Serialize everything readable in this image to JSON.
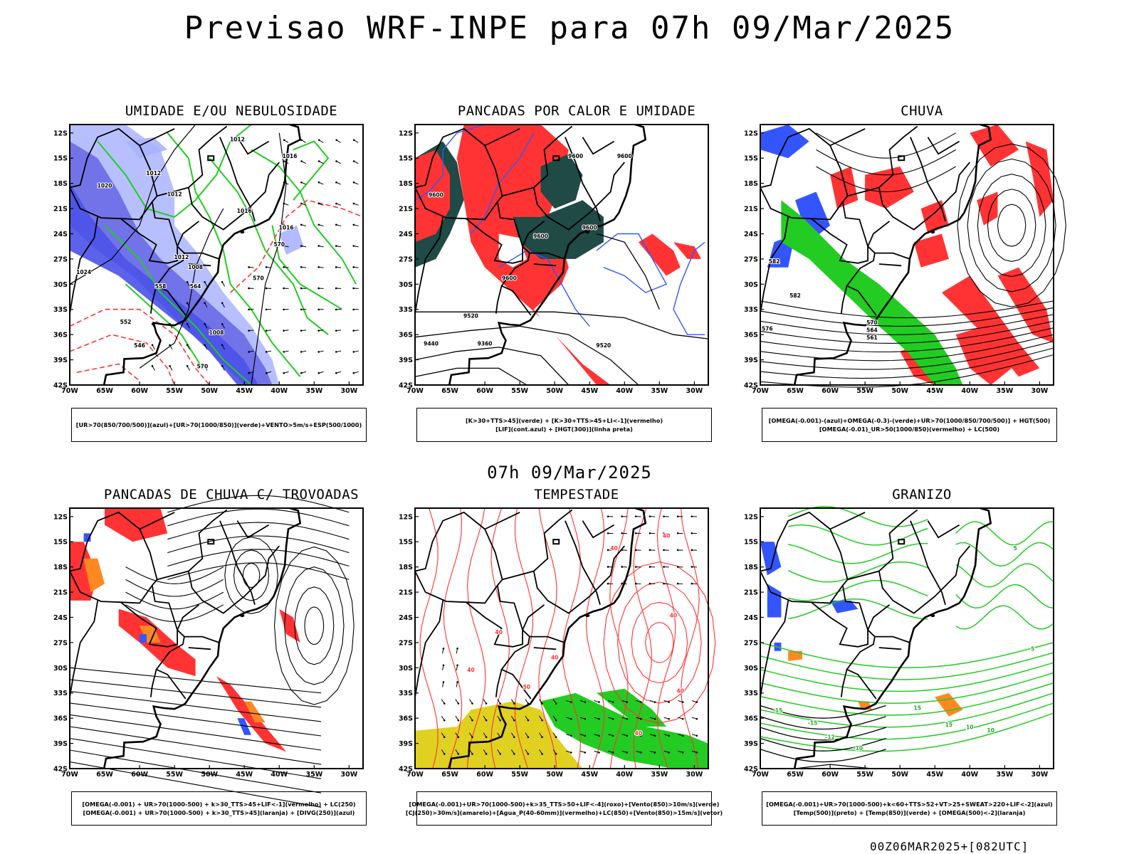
{
  "header": {
    "title": "Previsao WRF-INPE  para 07h 09/Mar/2025",
    "mid_time": "07h 09/Mar/2025",
    "footer": "00Z06MAR2025+[082UTC]"
  },
  "axes": {
    "lat_labels": [
      "12S",
      "15S",
      "18S",
      "21S",
      "24S",
      "27S",
      "30S",
      "33S",
      "36S",
      "39S",
      "42S"
    ],
    "lon_labels": [
      "70W",
      "65W",
      "60W",
      "55W",
      "50W",
      "45W",
      "40W",
      "35W",
      "30W"
    ]
  },
  "colors": {
    "blue": "#3355ff",
    "light_blue": "#aab4ff",
    "purple_blue": "#6a6ae6",
    "green": "#22cc22",
    "red": "#ff3333",
    "dark_teal": "#1f4a45",
    "orange": "#ff8822",
    "yellow": "#e0d020",
    "black": "#000000"
  },
  "panels": [
    {
      "id": "umidade",
      "title": "UMIDADE E/OU NEBULOSIDADE",
      "legend": [
        "[UR>70(850/700/500)](azul)+[UR>70(1000/850)](verde)+VENTO>5m/s+ESP(500/1000)"
      ],
      "contour_labels": [
        "1012",
        "1012",
        "1012",
        "1016",
        "1016",
        "1016",
        "1020",
        "1024",
        "1012",
        "1008",
        "1008",
        "570",
        "570",
        "570",
        "564",
        "558",
        "552",
        "546"
      ]
    },
    {
      "id": "pancadas-calor",
      "title": "PANCADAS POR CALOR E UMIDADE",
      "legend": [
        "[K>30+TTS>45](verde) + [K>30+TTS>45+LI<-1](vermelho)",
        "[LIF](cont.azul) + [HGT(300)](linha preta)"
      ],
      "contour_labels": [
        "9600",
        "9600",
        "9600",
        "9600",
        "9600",
        "9600",
        "9520",
        "9520",
        "9440",
        "9360"
      ]
    },
    {
      "id": "chuva",
      "title": "CHUVA",
      "legend": [
        "[OMEGA(-0.001)-(azul)+OMEGA(-0.3)-(verde)+UR>70(1000/850/700/500)] + HGT(500)",
        "[OMEGA(-0.01)_UR>50(1000/850)(vermelho) + LC(500)"
      ],
      "contour_labels": [
        "582",
        "582",
        "576",
        "570",
        "564",
        "561"
      ]
    },
    {
      "id": "pancadas-trovoadas",
      "title": "PANCADAS DE CHUVA C/ TROVOADAS",
      "legend": [
        "[OMEGA(-0.001) + UR>70(1000-500) + k>30_TTS>45+LIF<-1](vermelho) + LC(250)",
        "[OMEGA(-0.001) + UR>70(1000-500) + k>30_TTS>45](laranja) + [DIVG(250)](azul)"
      ]
    },
    {
      "id": "tempestade",
      "title": "TEMPESTADE",
      "legend": [
        "[OMEGA(-0.001)+UR>70(1000-500)+k>35_TTS>50+LIF<-4](roxo)+[Vento(850)>10m/s](verde)",
        "[CJ(250)>30m/s](amarelo)+[Agua_P(40-60mm)](vermelho)+LC(850)+[Vento(850)>15m/s](vetor)"
      ],
      "contour_labels": [
        "40",
        "40",
        "40",
        "40",
        "40",
        "40",
        "50",
        "40",
        "40"
      ]
    },
    {
      "id": "granizo",
      "title": "GRANIZO",
      "legend": [
        "[OMEGA(-0.001)+UR>70(1000-500)+k<60+TTS>52+VT>25+SWEAT>220+LIF<-2](azul)",
        "[Temp(500)](preto) + [Temp(850)](verde) + [OMEGA(500)<-2](laranja)"
      ],
      "contour_labels": [
        "-15",
        "-15",
        "-12",
        "-10",
        "5",
        "5",
        "15",
        "15",
        "10",
        "10"
      ]
    }
  ]
}
